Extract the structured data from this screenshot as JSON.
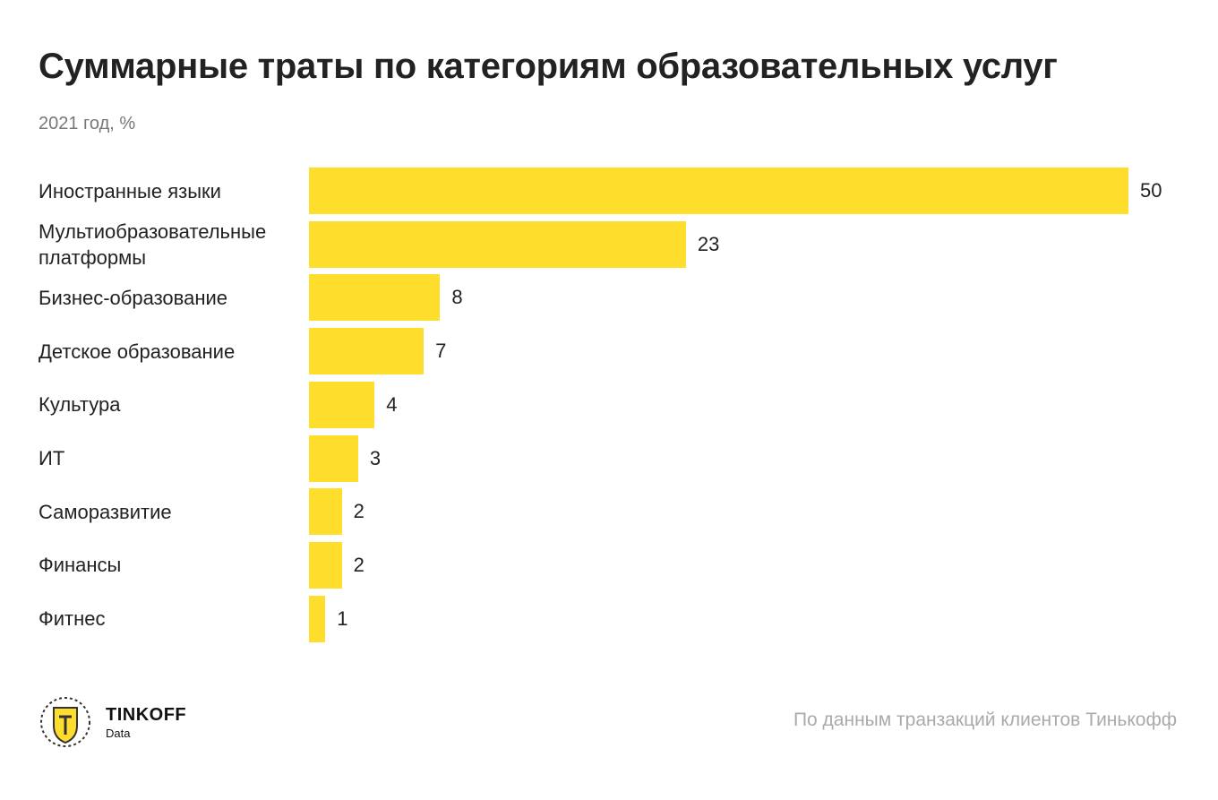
{
  "chart_data": {
    "type": "bar",
    "orientation": "horizontal",
    "title": "Суммарные траты по категориям образовательных услуг",
    "subtitle": "2021 год, %",
    "categories": [
      "Иностранные языки",
      "Мультиобразовательные платформы",
      "Бизнес-образование",
      "Детское образование",
      "Культура",
      "ИТ",
      "Саморазвитие",
      "Финансы",
      "Фитнес"
    ],
    "values": [
      50,
      23,
      8,
      7,
      4,
      3,
      2,
      2,
      1
    ],
    "color": "#ffdd2d",
    "source": "По данным транзакций клиентов Тинькофф"
  },
  "footer": {
    "brand": "TINKOFF",
    "brand_sub": "Data"
  }
}
